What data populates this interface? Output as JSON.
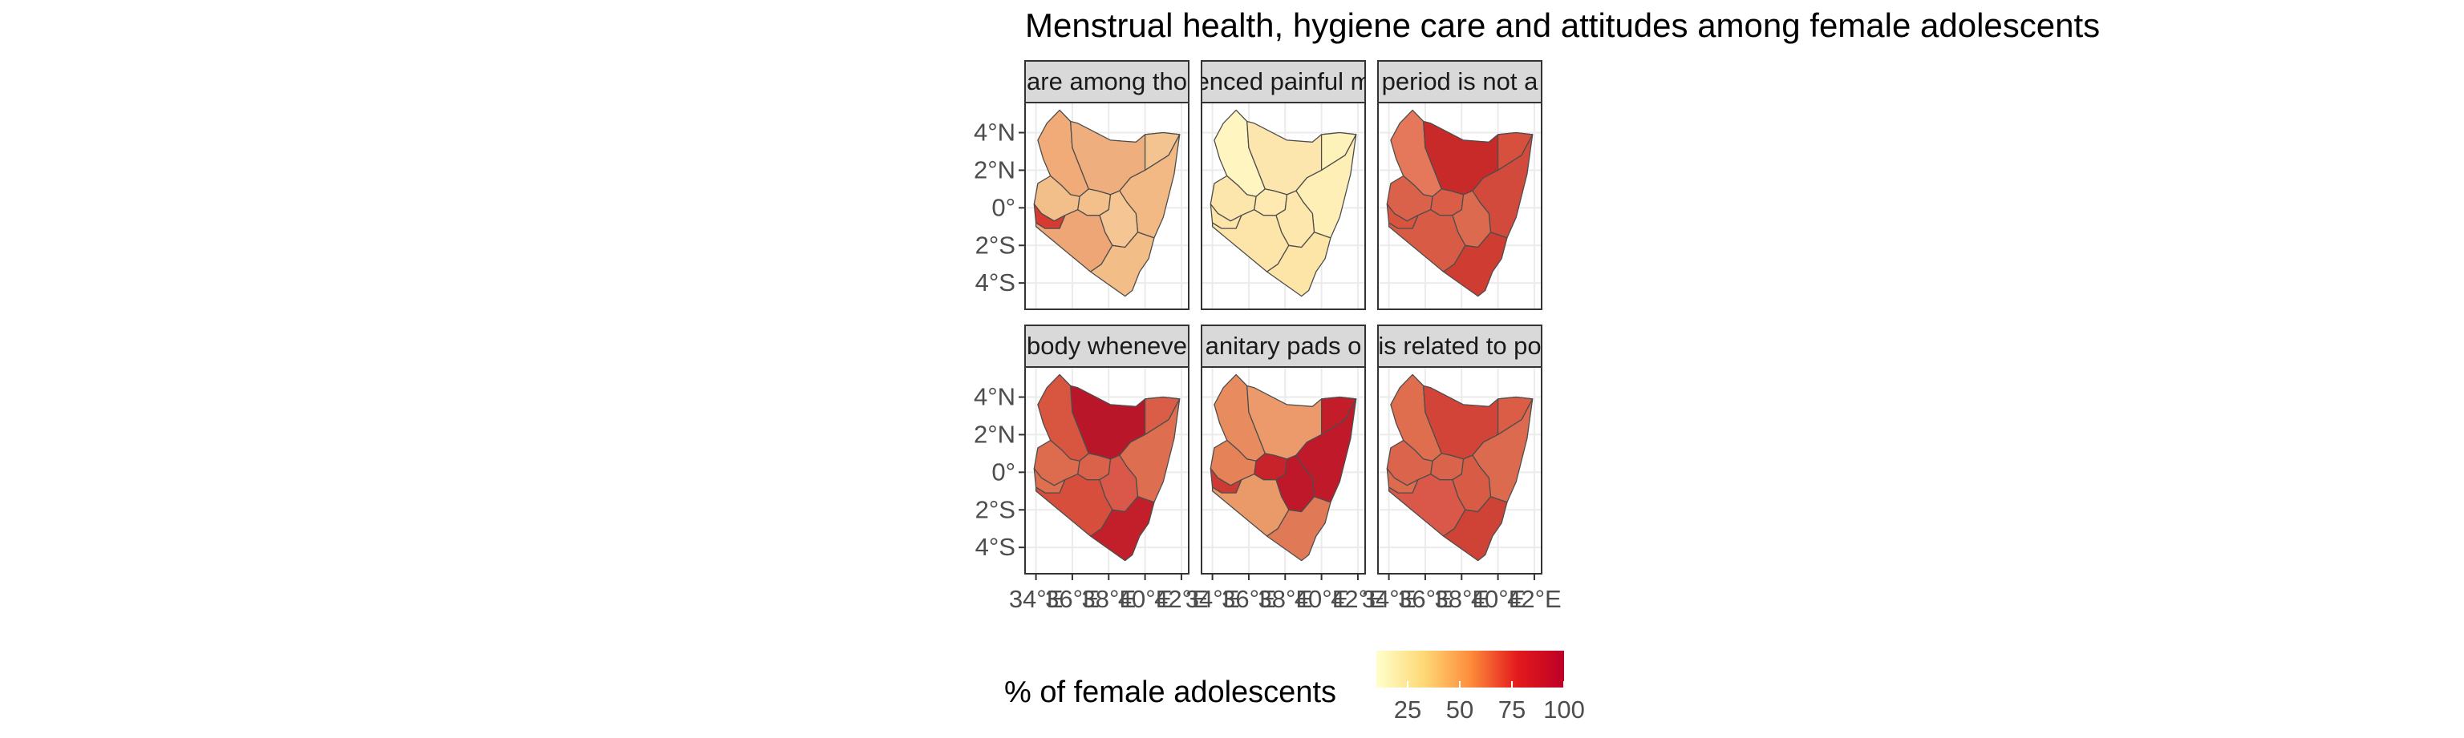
{
  "title": "Menstrual health, hygiene care and attitudes among female adolescents",
  "panels": [
    {
      "strip": "are among tho",
      "fills": [
        "#f0ab78",
        "#efae7d",
        "#f4c490",
        "#f2b985",
        "#f3c08c",
        "#f5c694",
        "#f2bf8b",
        "#d63a30",
        "#efa676",
        "#f3bd88"
      ]
    },
    {
      "strip": "enced painful m",
      "fills": [
        "#fff5c1",
        "#fde6ae",
        "#fef2bb",
        "#feefb6",
        "#fee9b1",
        "#fde7ac",
        "#fde6ab",
        "#fde4a8",
        "#fde5aa",
        "#fde5a8"
      ]
    },
    {
      "strip": "period is not a",
      "fills": [
        "#e5785a",
        "#c82a2a",
        "#d7503e",
        "#d24a3c",
        "#da5e47",
        "#dc6a4e",
        "#db624a",
        "#d9543f",
        "#d85b45",
        "#cf3d32"
      ]
    },
    {
      "strip": "body wheneve",
      "fills": [
        "#d8553f",
        "#b9162a",
        "#da5e47",
        "#dd6e50",
        "#db624a",
        "#d9584a",
        "#dd6c4f",
        "#de704f",
        "#d74f3c",
        "#c21f2a"
      ]
    },
    {
      "strip": "anitary pads o",
      "fills": [
        "#e88c60",
        "#ec9a6b",
        "#c21d29",
        "#c0192a",
        "#c8232b",
        "#bf182a",
        "#e68257",
        "#cd3a33",
        "#ea9a68",
        "#e07a56"
      ]
    },
    {
      "strip": "is related to po",
      "fills": [
        "#df6e4f",
        "#d14437",
        "#db5d46",
        "#dc6a4e",
        "#d9644b",
        "#d85b45",
        "#db644c",
        "#dd6c4f",
        "#d9584a",
        "#cf4337"
      ]
    }
  ],
  "y_ticks": [
    "4°N",
    "2°N",
    "0°",
    "2°S",
    "4°S"
  ],
  "x_ticks": [
    "34°E",
    "36°E",
    "38°E",
    "40°E",
    "42°E"
  ],
  "legend": {
    "title": "% of female adolescents",
    "ticks": [
      "25",
      "50",
      "75",
      "100"
    ],
    "scale": {
      "min": 10,
      "max": 100,
      "ticks": [
        25,
        50,
        75,
        100
      ]
    },
    "colors": [
      "#ffffcc",
      "#fed976",
      "#fd8d3c",
      "#e31a1c",
      "#bd0026"
    ]
  }
}
